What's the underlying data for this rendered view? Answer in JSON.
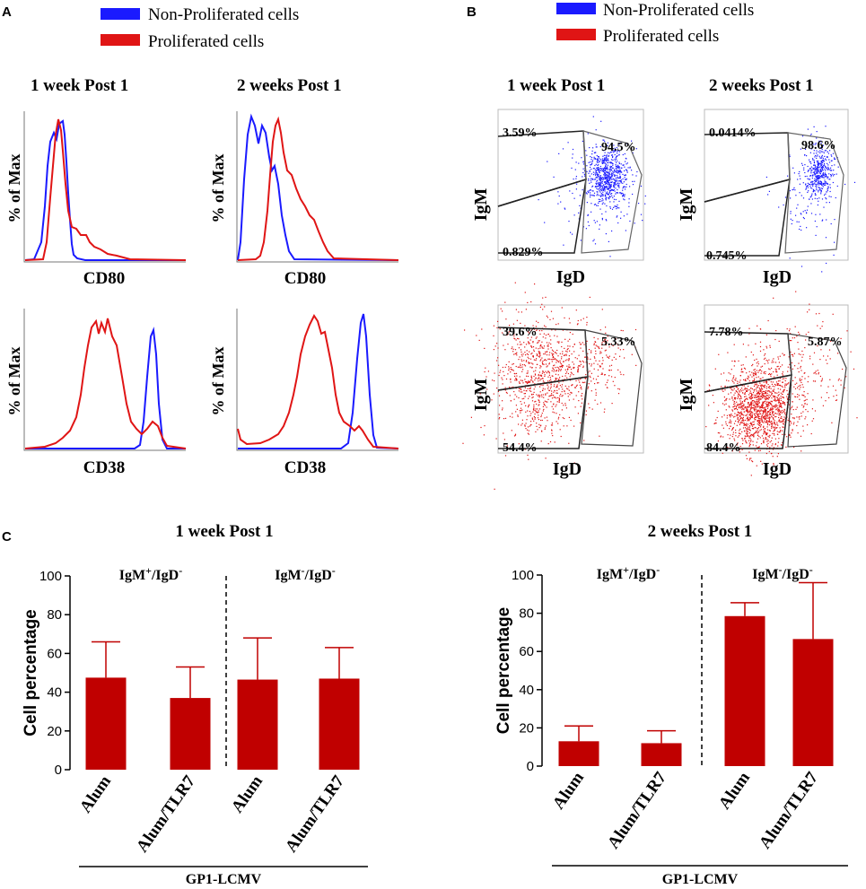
{
  "panels": {
    "a": "A",
    "b": "B",
    "c": "C"
  },
  "colors": {
    "non_proliferated": "#1a1aff",
    "proliferated": "#e01515",
    "bar": "#c00000"
  },
  "legend": {
    "non_proliferated": "Non-Proliferated cells",
    "proliferated": "Proliferated cells"
  },
  "timepoints": {
    "w1": "1 week Post 1",
    "w2": "2 weeks Post 1"
  },
  "histograms": {
    "ylabel": "% of Max",
    "cd80": {
      "xlabel": "CD80"
    },
    "cd38": {
      "xlabel": "CD38"
    }
  },
  "flow": {
    "xlabel": "IgD",
    "ylabel": "IgM",
    "nonprolif_w1": {
      "upper_left": "3.59%",
      "upper_right": "94.5%",
      "lower_left": "0.829%"
    },
    "nonprolif_w2": {
      "upper_left": "0.0414%",
      "upper_right": "98.6%",
      "lower_left": "0.745%"
    },
    "prolif_w1": {
      "upper_left": "39.6%",
      "upper_right": "5.33%",
      "lower_left": "54.4%"
    },
    "prolif_w2": {
      "upper_left": "7.78%",
      "upper_right": "5.87%",
      "lower_left": "84.4%"
    }
  },
  "chart_data": [
    {
      "type": "bar",
      "title": "1 week Post 1",
      "ylabel": "Cell percentage",
      "xlabel": "GP1-LCMV",
      "ylim": [
        0,
        100
      ],
      "yticks": [
        0,
        20,
        40,
        60,
        80,
        100
      ],
      "groups": [
        {
          "label_main": "IgM",
          "label_sup1": "+",
          "label_sep": "/IgD",
          "label_sup2": "-"
        },
        {
          "label_main": "IgM",
          "label_sup1": "-",
          "label_sep": "/IgD",
          "label_sup2": "-"
        }
      ],
      "categories": [
        "Alum",
        "Alum/TLR7",
        "Alum",
        "Alum/TLR7"
      ],
      "values": [
        47.5,
        37,
        46.5,
        47
      ],
      "errors": [
        18.5,
        16,
        21.5,
        16
      ]
    },
    {
      "type": "bar",
      "title": "2 weeks Post 1",
      "ylabel": "Cell percentage",
      "xlabel": "GP1-LCMV",
      "ylim": [
        0,
        100
      ],
      "yticks": [
        0,
        20,
        40,
        60,
        80,
        100
      ],
      "groups": [
        {
          "label_main": "IgM",
          "label_sup1": "+",
          "label_sep": "/IgD",
          "label_sup2": "-"
        },
        {
          "label_main": "IgM",
          "label_sup1": "-",
          "label_sep": "/IgD",
          "label_sup2": "-"
        }
      ],
      "categories": [
        "Alum",
        "Alum/TLR7",
        "Alum",
        "Alum/TLR7"
      ],
      "values": [
        13,
        12,
        78.5,
        66.5
      ],
      "errors": [
        8,
        6.5,
        7,
        29.5
      ]
    }
  ]
}
